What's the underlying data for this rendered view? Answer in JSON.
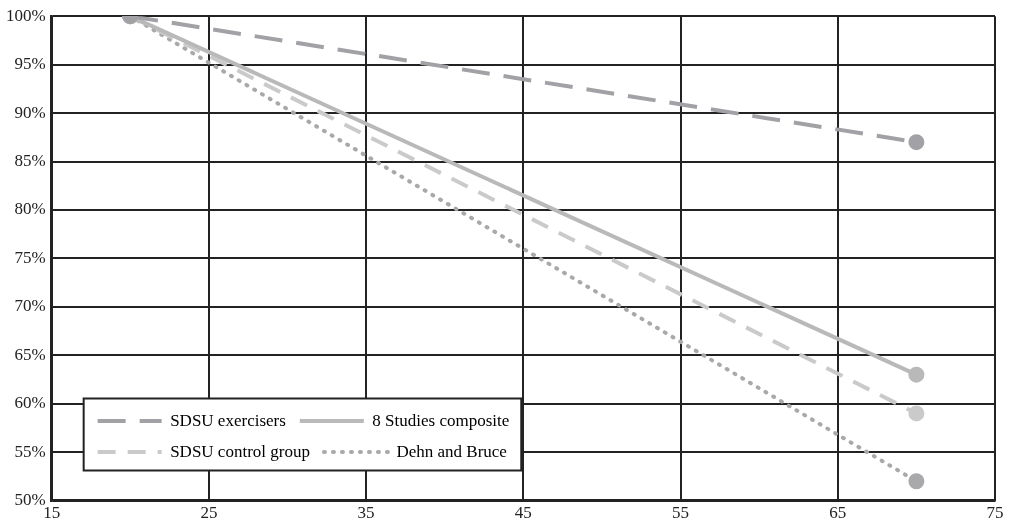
{
  "chart_data": {
    "type": "line",
    "x": [
      20,
      70
    ],
    "xlim": [
      15,
      75
    ],
    "xticks": [
      15,
      25,
      35,
      45,
      55,
      65,
      75
    ],
    "ylim": [
      50,
      100
    ],
    "yticks": [
      {
        "value": 50,
        "label": "50%"
      },
      {
        "value": 55,
        "label": "55%"
      },
      {
        "value": 60,
        "label": "60%"
      },
      {
        "value": 65,
        "label": "65%"
      },
      {
        "value": 70,
        "label": "70%"
      },
      {
        "value": 75,
        "label": "75%"
      },
      {
        "value": 80,
        "label": "80%"
      },
      {
        "value": 85,
        "label": "85%"
      },
      {
        "value": 90,
        "label": "90%"
      },
      {
        "value": 95,
        "label": "95%"
      },
      {
        "value": 100,
        "label": "100%"
      }
    ],
    "grid": true,
    "legend": "bottom left",
    "marker": "circle",
    "series": [
      {
        "name": "SDSU exercisers",
        "color": "#a2a2a6",
        "line_style": "dashed",
        "values": [
          100,
          87
        ]
      },
      {
        "name": "8 Studies composite",
        "color": "#b9b9b9",
        "line_style": "solid",
        "values": [
          100,
          63
        ]
      },
      {
        "name": "SDSU control group",
        "color": "#cacaca",
        "line_style": "dashed",
        "values": [
          100,
          59
        ]
      },
      {
        "name": "Dehn and Bruce",
        "color": "#a9a9ab",
        "line_style": "dotted",
        "values": [
          100,
          52
        ]
      }
    ]
  }
}
